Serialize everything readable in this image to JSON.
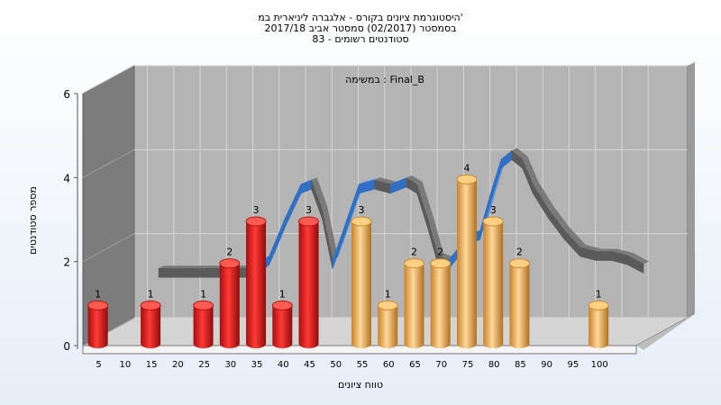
{
  "chart_data": {
    "type": "bar",
    "title_lines": [
      "היסטוגרמת ציונים בקורס - אלגברה ליניארית במ'",
      "בסמסטר  (02/2017)  סמסטר אביב 2017/18",
      "סטודנטים רשומים - 83"
    ],
    "subtitle": "במשימה : Final_B",
    "xlabel": "טווח ציונים",
    "ylabel": "מספר סטודנטים",
    "ylim": [
      0,
      6
    ],
    "yticks": [
      0,
      2,
      4,
      6
    ],
    "x_ticks": [
      "5",
      "10",
      "15",
      "20",
      "25",
      "30",
      "35",
      "40",
      "45",
      "50",
      "55",
      "60",
      "65",
      "70",
      "75",
      "80",
      "85",
      "90",
      "95",
      "100"
    ],
    "bars": [
      {
        "x": 5,
        "value": 1,
        "group": "fail"
      },
      {
        "x": 15,
        "value": 1,
        "group": "fail"
      },
      {
        "x": 25,
        "value": 1,
        "group": "fail"
      },
      {
        "x": 30,
        "value": 2,
        "group": "fail"
      },
      {
        "x": 35,
        "value": 3,
        "group": "fail"
      },
      {
        "x": 40,
        "value": 1,
        "group": "fail"
      },
      {
        "x": 45,
        "value": 3,
        "group": "fail"
      },
      {
        "x": 55,
        "value": 3,
        "group": "pass"
      },
      {
        "x": 60,
        "value": 1,
        "group": "pass"
      },
      {
        "x": 65,
        "value": 2,
        "group": "pass"
      },
      {
        "x": 70,
        "value": 2,
        "group": "pass"
      },
      {
        "x": 75,
        "value": 4,
        "group": "pass"
      },
      {
        "x": 80,
        "value": 3,
        "group": "pass"
      },
      {
        "x": 85,
        "value": 2,
        "group": "pass"
      },
      {
        "x": 100,
        "value": 1,
        "group": "pass"
      }
    ],
    "curve": [
      {
        "x": 12,
        "y": 1.4
      },
      {
        "x": 18,
        "y": 1.4
      },
      {
        "x": 24,
        "y": 1.4
      },
      {
        "x": 30,
        "y": 1.4
      },
      {
        "x": 33,
        "y": 1.7
      },
      {
        "x": 36,
        "y": 2.6
      },
      {
        "x": 39,
        "y": 3.4
      },
      {
        "x": 41,
        "y": 3.5
      },
      {
        "x": 43,
        "y": 2.8
      },
      {
        "x": 45,
        "y": 1.6
      },
      {
        "x": 47,
        "y": 2.3
      },
      {
        "x": 50,
        "y": 3.4
      },
      {
        "x": 53,
        "y": 3.5
      },
      {
        "x": 56,
        "y": 3.4
      },
      {
        "x": 59,
        "y": 3.55
      },
      {
        "x": 61,
        "y": 3.4
      },
      {
        "x": 63,
        "y": 2.6
      },
      {
        "x": 65,
        "y": 1.7
      },
      {
        "x": 67,
        "y": 1.6
      },
      {
        "x": 69,
        "y": 1.9
      },
      {
        "x": 71,
        "y": 2.2
      },
      {
        "x": 73,
        "y": 2.3
      },
      {
        "x": 75,
        "y": 3.2
      },
      {
        "x": 77,
        "y": 4.0
      },
      {
        "x": 79,
        "y": 4.2
      },
      {
        "x": 81,
        "y": 4.0
      },
      {
        "x": 83,
        "y": 3.4
      },
      {
        "x": 86,
        "y": 2.8
      },
      {
        "x": 89,
        "y": 2.3
      },
      {
        "x": 92,
        "y": 1.9
      },
      {
        "x": 95,
        "y": 1.8
      },
      {
        "x": 98,
        "y": 1.8
      },
      {
        "x": 101,
        "y": 1.7
      },
      {
        "x": 104,
        "y": 1.5
      }
    ],
    "colors": {
      "fail": "#e0201f",
      "pass": "#efaa3c",
      "curve_front": "#2f6fc4",
      "curve_side": "#5a5a5a",
      "wall_back": "#b4b4b4",
      "wall_left": "#7c7c7c",
      "floor": "#d4d4d4"
    }
  }
}
